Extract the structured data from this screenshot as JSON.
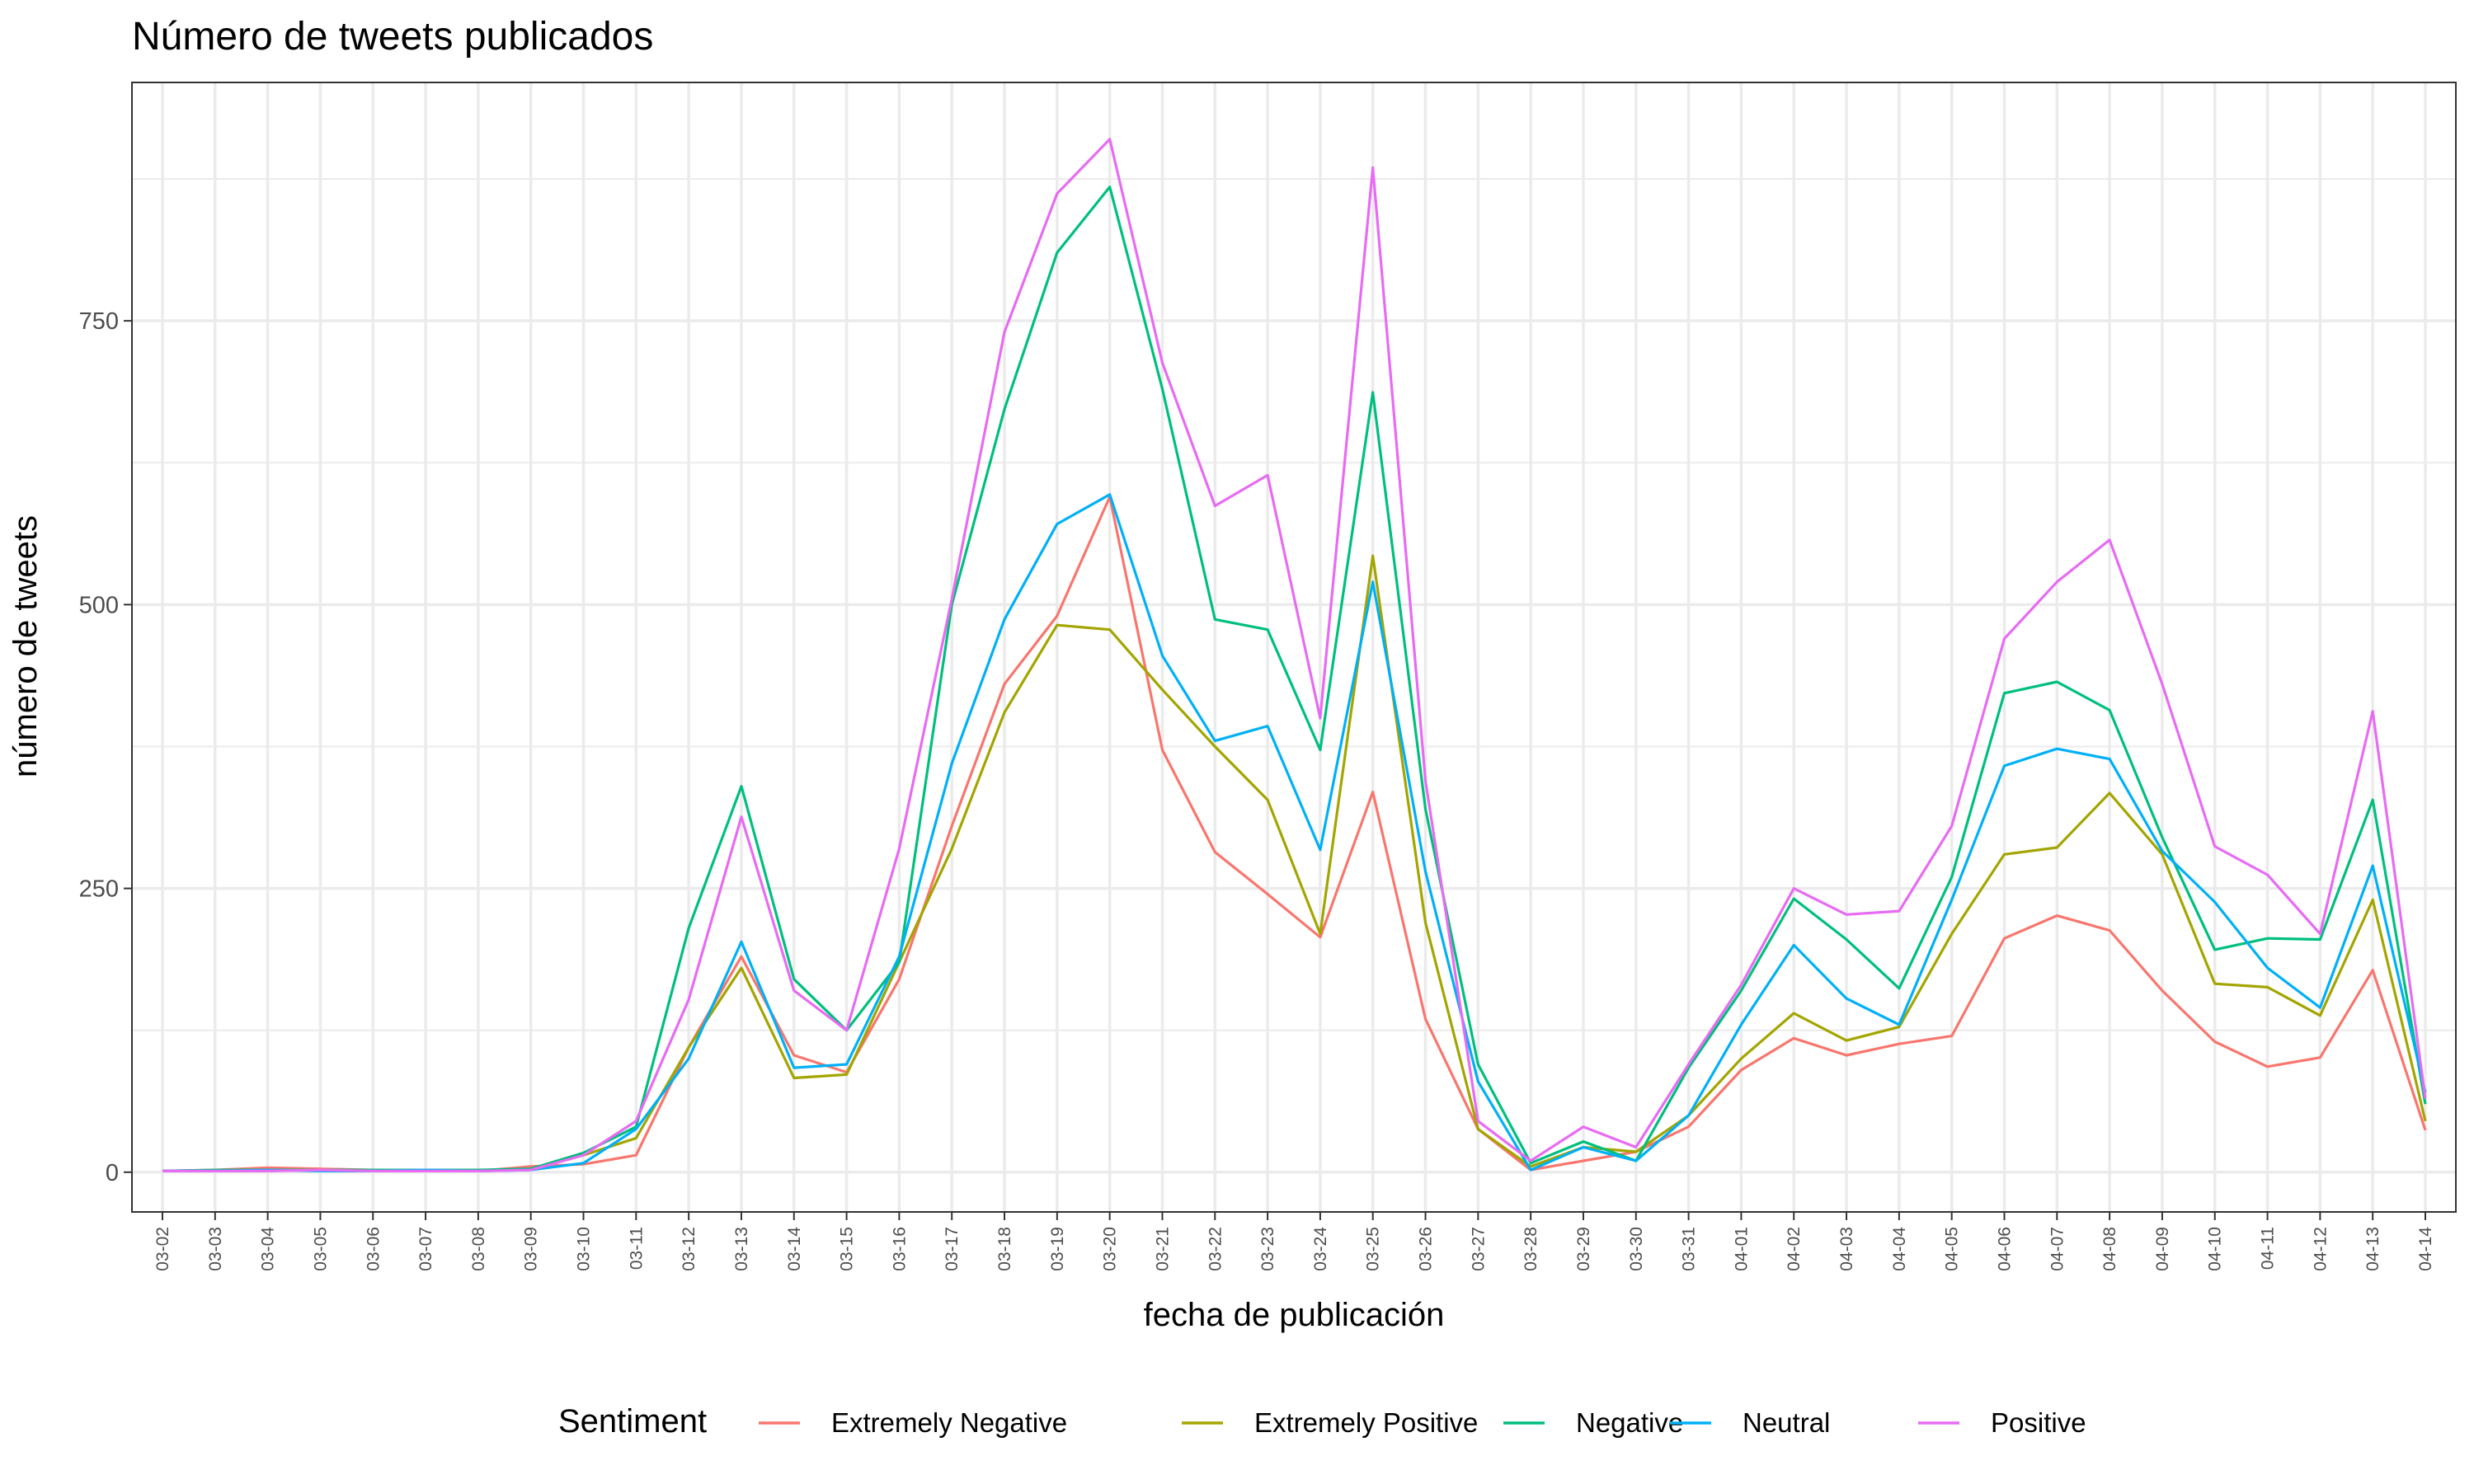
{
  "chart_data": {
    "type": "line",
    "title": "Número de tweets publicados",
    "xlabel": "fecha de publicación",
    "ylabel": "número de tweets",
    "ylim": [
      -35,
      960
    ],
    "yticks": [
      0,
      250,
      500,
      750
    ],
    "grid": true,
    "legend_position": "bottom",
    "legend_title": "Sentiment",
    "categories": [
      "03-02",
      "03-03",
      "03-04",
      "03-05",
      "03-06",
      "03-07",
      "03-08",
      "03-09",
      "03-10",
      "03-11",
      "03-12",
      "03-13",
      "03-14",
      "03-15",
      "03-16",
      "03-17",
      "03-18",
      "03-19",
      "03-20",
      "03-21",
      "03-22",
      "03-23",
      "03-24",
      "03-25",
      "03-26",
      "03-27",
      "03-28",
      "03-29",
      "03-30",
      "03-31",
      "04-01",
      "04-02",
      "04-03",
      "04-04",
      "04-05",
      "04-06",
      "04-07",
      "04-08",
      "04-09",
      "04-10",
      "04-11",
      "04-12",
      "04-13",
      "04-14"
    ],
    "series": [
      {
        "name": "Extremely Negative",
        "color": "#F8766D",
        "values": [
          1,
          2,
          4,
          3,
          2,
          2,
          1,
          5,
          7,
          15,
          110,
          190,
          103,
          88,
          170,
          305,
          430,
          490,
          595,
          372,
          282,
          245,
          207,
          335,
          135,
          38,
          2,
          10,
          18,
          40,
          90,
          118,
          103,
          113,
          120,
          206,
          226,
          213,
          160,
          115,
          93,
          101,
          178,
          37
        ]
      },
      {
        "name": "Extremely Positive",
        "color": "#A3A500",
        "values": [
          1,
          1,
          2,
          2,
          1,
          1,
          1,
          3,
          15,
          30,
          110,
          180,
          83,
          86,
          185,
          285,
          405,
          482,
          478,
          425,
          375,
          328,
          210,
          543,
          220,
          38,
          5,
          22,
          18,
          50,
          100,
          140,
          116,
          128,
          210,
          280,
          286,
          334,
          280,
          166,
          163,
          138,
          240,
          45
        ]
      },
      {
        "name": "Negative",
        "color": "#00BF7D",
        "values": [
          1,
          2,
          2,
          2,
          2,
          2,
          2,
          3,
          17,
          40,
          215,
          340,
          170,
          125,
          185,
          500,
          672,
          810,
          868,
          690,
          487,
          478,
          372,
          687,
          320,
          95,
          8,
          27,
          10,
          92,
          160,
          241,
          205,
          162,
          260,
          422,
          432,
          407,
          295,
          196,
          206,
          205,
          328,
          60
        ]
      },
      {
        "name": "Neutral",
        "color": "#00B0F6",
        "values": [
          1,
          1,
          2,
          1,
          1,
          2,
          1,
          2,
          8,
          38,
          100,
          203,
          92,
          95,
          190,
          360,
          487,
          571,
          597,
          455,
          380,
          393,
          284,
          520,
          265,
          80,
          2,
          22,
          10,
          50,
          130,
          200,
          153,
          130,
          240,
          358,
          373,
          364,
          283,
          238,
          180,
          145,
          270,
          70
        ]
      },
      {
        "name": "Positive",
        "color": "#E76BF3",
        "values": [
          1,
          1,
          1,
          2,
          1,
          1,
          1,
          2,
          15,
          45,
          152,
          313,
          160,
          125,
          285,
          505,
          740,
          862,
          910,
          713,
          587,
          614,
          400,
          885,
          345,
          45,
          10,
          40,
          22,
          95,
          165,
          250,
          227,
          230,
          305,
          470,
          520,
          557,
          430,
          287,
          262,
          210,
          406,
          65
        ]
      }
    ]
  }
}
